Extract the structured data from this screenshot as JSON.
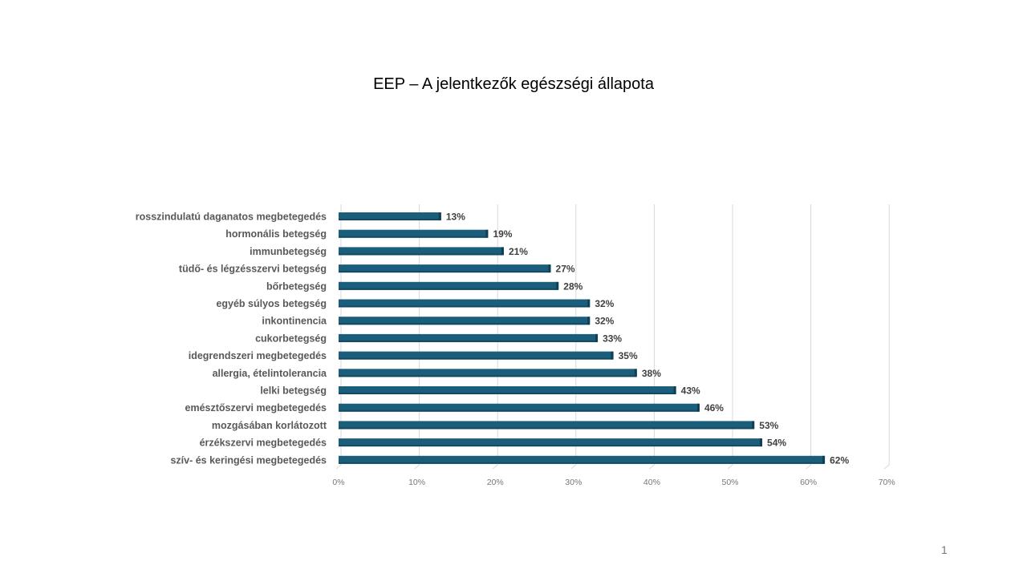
{
  "chart_data": {
    "type": "bar",
    "orientation": "horizontal",
    "title": "EEP – A jelentkezők egészségi állapota",
    "categories": [
      "rosszindulatú daganatos megbetegedés",
      "hormonális betegség",
      "immunbetegség",
      "tüdő- és légzésszervi betegség",
      "bőrbetegség",
      "egyéb súlyos betegség",
      "inkontinencia",
      "cukorbetegség",
      "idegrendszeri megbetegedés",
      "allergia, ételintolerancia",
      "lelki betegség",
      "emésztőszervi megbetegedés",
      "mozgásában korlátozott",
      "érzékszervi megbetegedés",
      "szív- és keringési megbetegedés"
    ],
    "values": [
      13,
      19,
      21,
      27,
      28,
      32,
      32,
      33,
      35,
      38,
      43,
      46,
      53,
      54,
      62
    ],
    "data_labels": [
      "13%",
      "19%",
      "21%",
      "27%",
      "28%",
      "32%",
      "32%",
      "33%",
      "35%",
      "38%",
      "43%",
      "46%",
      "53%",
      "54%",
      "62%"
    ],
    "xlim": [
      0,
      70
    ],
    "x_ticks": [
      "0%",
      "10%",
      "20%",
      "30%",
      "40%",
      "50%",
      "60%",
      "70%"
    ],
    "grid": true,
    "legend": "none",
    "bar_color": "#1b5e7b"
  },
  "slide": {
    "page_number": "1"
  }
}
